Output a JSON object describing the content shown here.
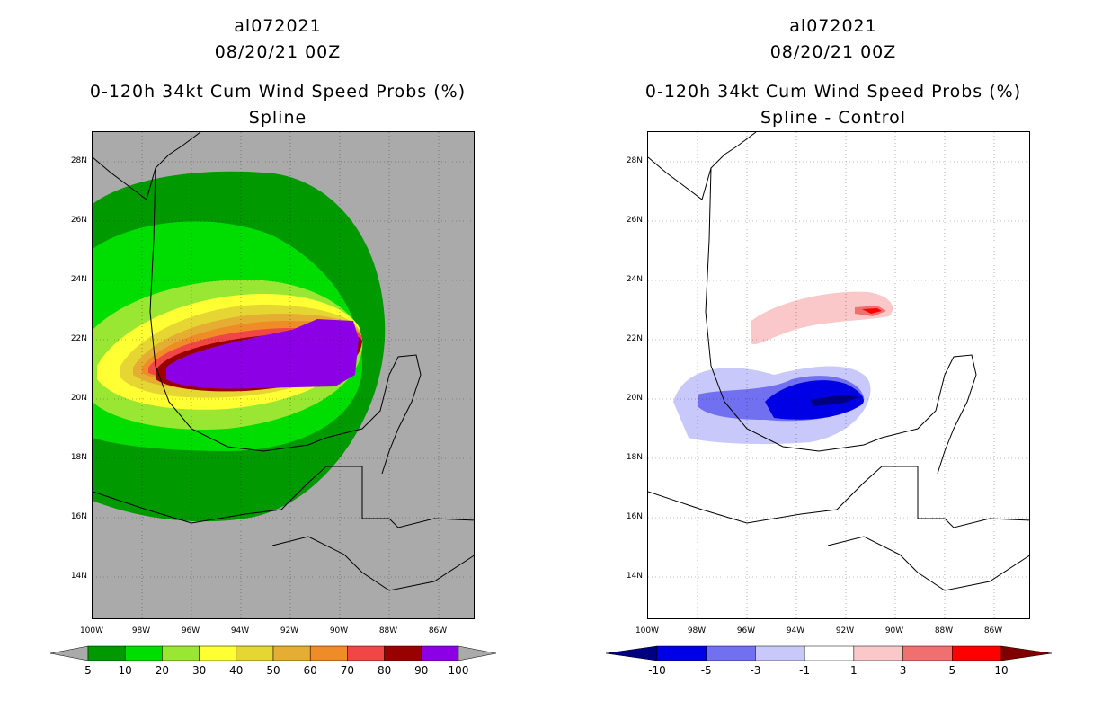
{
  "left_panel": {
    "storm_id": "al072021",
    "datetime": "08/20/21 00Z",
    "product": "0-120h 34kt Cum Wind Speed Probs (%)",
    "method": "Spline",
    "colorbar_labels": [
      "5",
      "10",
      "20",
      "30",
      "40",
      "50",
      "60",
      "70",
      "80",
      "90",
      "100"
    ],
    "colorbar_colors": [
      "#009900",
      "#00dd00",
      "#99e633",
      "#ffff33",
      "#e6d633",
      "#e6ad33",
      "#f08c28",
      "#f04646",
      "#990000",
      "#8c00e6"
    ]
  },
  "right_panel": {
    "storm_id": "al072021",
    "datetime": "08/20/21 00Z",
    "product": "0-120h 34kt Cum Wind Speed Probs (%)",
    "method": "Spline - Control",
    "colorbar_labels": [
      "-10",
      "-5",
      "-3",
      "-1",
      "1",
      "3",
      "5",
      "10"
    ],
    "colorbar_colors": [
      "#0000e6",
      "#7070f0",
      "#c8c8fa",
      "#ffffff",
      "#fac8c8",
      "#f07070",
      "#ff0000"
    ]
  },
  "axes": {
    "lat_labels": [
      "28N",
      "26N",
      "24N",
      "22N",
      "20N",
      "18N",
      "16N",
      "14N"
    ],
    "lon_labels": [
      "100W",
      "98W",
      "96W",
      "94W",
      "92W",
      "90W",
      "88W",
      "86W"
    ]
  },
  "colors": {
    "land_gray": "#aaaaaa",
    "coast": "#000000"
  }
}
